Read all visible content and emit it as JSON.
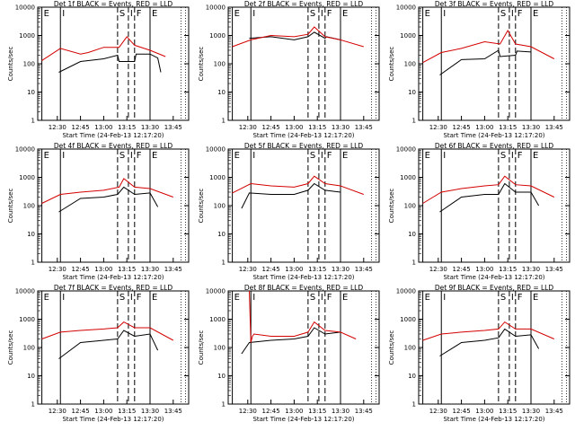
{
  "chart_data": [
    {
      "type": "line",
      "title": "Det 1f BLACK = Events, RED = LLD",
      "xlabel": "Start Time (24-Feb-13 12:17:20)",
      "ylabel": "Counts/sec",
      "x_ticks": [
        "12:30",
        "12:45",
        "13:00",
        "13:15",
        "13:30",
        "13:45"
      ],
      "y_ticks": [
        "1",
        "10",
        "100",
        "1000",
        "10000"
      ],
      "ylim": [
        1,
        10000
      ],
      "log_y": true,
      "markers": [
        {
          "label": "E",
          "time": "12:20",
          "style": "solid"
        },
        {
          "label": "I",
          "time": "12:32",
          "style": "solid"
        },
        {
          "label": "S",
          "time": "13:09",
          "style": "dashed"
        },
        {
          "label": "I",
          "time": "13:16",
          "style": "dashed"
        },
        {
          "label": "F",
          "time": "13:20",
          "style": "dashed"
        },
        {
          "label": "E",
          "time": "13:30",
          "style": "solid"
        }
      ],
      "series": [
        {
          "name": "",
          "color": "#000000",
          "x": [
            "12:31",
            "12:45",
            "13:00",
            "13:09",
            "13:10",
            "13:20",
            "13:21",
            "13:30",
            "13:35",
            "13:37"
          ],
          "y": [
            50,
            120,
            150,
            200,
            120,
            120,
            220,
            220,
            160,
            50
          ]
        },
        {
          "name": "",
          "color": "#d40000",
          "x": [
            "12:20",
            "12:32",
            "12:45",
            "12:50",
            "13:00",
            "13:10",
            "13:15",
            "13:20",
            "13:30",
            "13:40"
          ],
          "y": [
            130,
            350,
            220,
            250,
            380,
            380,
            900,
            450,
            300,
            180
          ]
        }
      ]
    },
    {
      "type": "line",
      "title": "Det 2f BLACK = Events, RED = LLD",
      "xlabel": "Start Time (24-Feb-13 12:17:20)",
      "ylabel": "Counts/sec",
      "x_ticks": [
        "12:30",
        "12:45",
        "13:00",
        "13:15",
        "13:30",
        "13:45"
      ],
      "y_ticks": [
        "1",
        "10",
        "100",
        "1000",
        "10000"
      ],
      "ylim": [
        1,
        10000
      ],
      "log_y": true,
      "markers": [
        {
          "label": "E",
          "time": "12:20",
          "style": "solid"
        },
        {
          "label": "I",
          "time": "12:32",
          "style": "solid"
        },
        {
          "label": "S",
          "time": "13:09",
          "style": "dashed"
        },
        {
          "label": "I",
          "time": "13:16",
          "style": "dashed"
        },
        {
          "label": "F",
          "time": "13:20",
          "style": "dashed"
        },
        {
          "label": "E",
          "time": "13:30",
          "style": "solid"
        }
      ],
      "series": [
        {
          "name": "",
          "color": "#000000",
          "x": [
            "12:31",
            "12:45",
            "13:00",
            "13:09",
            "13:13",
            "13:20",
            "13:21",
            "13:30"
          ],
          "y": [
            800,
            900,
            700,
            900,
            1300,
            800,
            900,
            700
          ]
        },
        {
          "name": "",
          "color": "#d40000",
          "x": [
            "12:20",
            "12:32",
            "12:45",
            "13:00",
            "13:09",
            "13:13",
            "13:20",
            "13:30",
            "13:45"
          ],
          "y": [
            400,
            700,
            1000,
            900,
            1100,
            2000,
            900,
            700,
            400
          ]
        }
      ]
    },
    {
      "type": "line",
      "title": "Det 3f BLACK = Events, RED = LLD",
      "xlabel": "Start Time (24-Feb-13 12:17:20)",
      "ylabel": "Counts/sec",
      "x_ticks": [
        "12:30",
        "12:45",
        "13:00",
        "13:15",
        "13:30",
        "13:45"
      ],
      "y_ticks": [
        "1",
        "10",
        "100",
        "1000",
        "10000"
      ],
      "ylim": [
        1,
        10000
      ],
      "log_y": true,
      "markers": [
        {
          "label": "E",
          "time": "12:20",
          "style": "solid"
        },
        {
          "label": "I",
          "time": "12:32",
          "style": "solid"
        },
        {
          "label": "S",
          "time": "13:09",
          "style": "dashed"
        },
        {
          "label": "I",
          "time": "13:16",
          "style": "dashed"
        },
        {
          "label": "F",
          "time": "13:20",
          "style": "dashed"
        },
        {
          "label": "E",
          "time": "13:30",
          "style": "solid"
        }
      ],
      "series": [
        {
          "name": "",
          "color": "#000000",
          "x": [
            "12:31",
            "12:45",
            "13:00",
            "13:09",
            "13:10",
            "13:20",
            "13:21",
            "13:30"
          ],
          "y": [
            40,
            140,
            150,
            300,
            180,
            200,
            280,
            260
          ]
        },
        {
          "name": "",
          "color": "#d40000",
          "x": [
            "12:20",
            "12:32",
            "12:45",
            "13:00",
            "13:10",
            "13:15",
            "13:20",
            "13:30",
            "13:45"
          ],
          "y": [
            110,
            250,
            350,
            600,
            500,
            1500,
            500,
            400,
            150
          ]
        }
      ]
    },
    {
      "type": "line",
      "title": "Det 4f BLACK = Events, RED = LLD",
      "xlabel": "Start Time (24-Feb-13 12:17:20)",
      "ylabel": "Counts/sec",
      "x_ticks": [
        "12:30",
        "12:45",
        "13:00",
        "13:15",
        "13:30",
        "13:45"
      ],
      "y_ticks": [
        "1",
        "10",
        "100",
        "1000",
        "10000"
      ],
      "ylim": [
        1,
        10000
      ],
      "log_y": true,
      "markers": [
        {
          "label": "E",
          "time": "12:20",
          "style": "solid"
        },
        {
          "label": "I",
          "time": "12:32",
          "style": "solid"
        },
        {
          "label": "S",
          "time": "13:09",
          "style": "dashed"
        },
        {
          "label": "I",
          "time": "13:16",
          "style": "dashed"
        },
        {
          "label": "F",
          "time": "13:20",
          "style": "dashed"
        },
        {
          "label": "E",
          "time": "13:30",
          "style": "solid"
        }
      ],
      "series": [
        {
          "name": "",
          "color": "#000000",
          "x": [
            "12:31",
            "12:45",
            "13:00",
            "13:09",
            "13:13",
            "13:20",
            "13:30",
            "13:35"
          ],
          "y": [
            60,
            180,
            200,
            250,
            450,
            250,
            280,
            90
          ]
        },
        {
          "name": "",
          "color": "#d40000",
          "x": [
            "12:20",
            "12:32",
            "12:45",
            "13:00",
            "13:10",
            "13:13",
            "13:20",
            "13:30",
            "13:45"
          ],
          "y": [
            120,
            250,
            300,
            350,
            450,
            900,
            450,
            400,
            200
          ]
        }
      ]
    },
    {
      "type": "line",
      "title": "Det 5f BLACK = Events, RED = LLD",
      "xlabel": "Start Time (24-Feb-13 12:17:20)",
      "ylabel": "Counts/sec",
      "x_ticks": [
        "12:30",
        "12:45",
        "13:00",
        "13:15",
        "13:30",
        "13:45"
      ],
      "y_ticks": [
        "1",
        "10",
        "100",
        "1000",
        "10000"
      ],
      "ylim": [
        1,
        10000
      ],
      "log_y": true,
      "markers": [
        {
          "label": "E",
          "time": "12:20",
          "style": "solid"
        },
        {
          "label": "I",
          "time": "12:32",
          "style": "solid"
        },
        {
          "label": "S",
          "time": "13:09",
          "style": "dashed"
        },
        {
          "label": "I",
          "time": "13:16",
          "style": "dashed"
        },
        {
          "label": "F",
          "time": "13:20",
          "style": "dashed"
        },
        {
          "label": "E",
          "time": "13:30",
          "style": "solid"
        }
      ],
      "series": [
        {
          "name": "",
          "color": "#000000",
          "x": [
            "12:26",
            "12:31",
            "12:45",
            "13:00",
            "13:09",
            "13:13",
            "13:20",
            "13:30"
          ],
          "y": [
            80,
            280,
            250,
            250,
            350,
            600,
            350,
            300
          ]
        },
        {
          "name": "",
          "color": "#d40000",
          "x": [
            "12:20",
            "12:32",
            "12:45",
            "13:00",
            "13:09",
            "13:13",
            "13:20",
            "13:30",
            "13:45"
          ],
          "y": [
            280,
            600,
            500,
            450,
            600,
            1100,
            600,
            500,
            250
          ]
        }
      ]
    },
    {
      "type": "line",
      "title": "Det 6f BLACK = Events, RED = LLD",
      "xlabel": "Start Time (24-Feb-13 12:17:20)",
      "ylabel": "Counts/sec",
      "x_ticks": [
        "12:30",
        "12:45",
        "13:00",
        "13:15",
        "13:30",
        "13:45"
      ],
      "y_ticks": [
        "1",
        "10",
        "100",
        "1000",
        "10000"
      ],
      "ylim": [
        1,
        10000
      ],
      "log_y": true,
      "markers": [
        {
          "label": "E",
          "time": "12:20",
          "style": "solid"
        },
        {
          "label": "I",
          "time": "12:32",
          "style": "solid"
        },
        {
          "label": "S",
          "time": "13:09",
          "style": "dashed"
        },
        {
          "label": "I",
          "time": "13:16",
          "style": "dashed"
        },
        {
          "label": "F",
          "time": "13:20",
          "style": "dashed"
        },
        {
          "label": "E",
          "time": "13:30",
          "style": "solid"
        }
      ],
      "series": [
        {
          "name": "",
          "color": "#000000",
          "x": [
            "12:31",
            "12:45",
            "13:00",
            "13:09",
            "13:13",
            "13:20",
            "13:30",
            "13:35"
          ],
          "y": [
            60,
            200,
            250,
            250,
            600,
            300,
            300,
            100
          ]
        },
        {
          "name": "",
          "color": "#d40000",
          "x": [
            "12:20",
            "12:32",
            "12:45",
            "13:00",
            "13:09",
            "13:13",
            "13:20",
            "13:30",
            "13:45"
          ],
          "y": [
            120,
            300,
            400,
            500,
            550,
            1100,
            550,
            500,
            200
          ]
        }
      ]
    },
    {
      "type": "line",
      "title": "Det 7f BLACK = Events, RED = LLD",
      "xlabel": "Start Time (24-Feb-13 12:17:20)",
      "ylabel": "Counts/sec",
      "x_ticks": [
        "12:30",
        "12:45",
        "13:00",
        "13:15",
        "13:30",
        "13:45"
      ],
      "y_ticks": [
        "1",
        "10",
        "100",
        "1000",
        "10000"
      ],
      "ylim": [
        1,
        10000
      ],
      "log_y": true,
      "markers": [
        {
          "label": "E",
          "time": "12:20",
          "style": "solid"
        },
        {
          "label": "I",
          "time": "12:32",
          "style": "solid"
        },
        {
          "label": "S",
          "time": "13:09",
          "style": "dashed"
        },
        {
          "label": "I",
          "time": "13:16",
          "style": "dashed"
        },
        {
          "label": "F",
          "time": "13:20",
          "style": "dashed"
        },
        {
          "label": "E",
          "time": "13:30",
          "style": "solid"
        }
      ],
      "series": [
        {
          "name": "",
          "color": "#000000",
          "x": [
            "12:31",
            "12:45",
            "13:00",
            "13:09",
            "13:13",
            "13:20",
            "13:30",
            "13:35"
          ],
          "y": [
            40,
            150,
            180,
            200,
            400,
            250,
            300,
            80
          ]
        },
        {
          "name": "",
          "color": "#d40000",
          "x": [
            "12:20",
            "12:32",
            "12:45",
            "13:00",
            "13:09",
            "13:13",
            "13:20",
            "13:30",
            "13:45"
          ],
          "y": [
            200,
            350,
            400,
            450,
            500,
            800,
            500,
            500,
            180
          ]
        }
      ]
    },
    {
      "type": "line",
      "title": "Det 8f BLACK = Events, RED = LLD",
      "xlabel": "Start Time (24-Feb-13 12:17:20)",
      "ylabel": "Counts/sec",
      "x_ticks": [
        "12:30",
        "12:45",
        "13:00",
        "13:15",
        "13:30",
        "13:45"
      ],
      "y_ticks": [
        "1",
        "10",
        "100",
        "1000",
        "10000"
      ],
      "ylim": [
        1,
        10000
      ],
      "log_y": true,
      "markers": [
        {
          "label": "E",
          "time": "12:20",
          "style": "solid"
        },
        {
          "label": "I",
          "time": "12:32",
          "style": "solid"
        },
        {
          "label": "S",
          "time": "13:09",
          "style": "dashed"
        },
        {
          "label": "I",
          "time": "13:16",
          "style": "dashed"
        },
        {
          "label": "F",
          "time": "13:20",
          "style": "dashed"
        },
        {
          "label": "E",
          "time": "13:30",
          "style": "solid"
        }
      ],
      "series": [
        {
          "name": "",
          "color": "#000000",
          "x": [
            "12:26",
            "12:31",
            "12:45",
            "13:00",
            "13:09",
            "13:13",
            "13:20",
            "13:30"
          ],
          "y": [
            60,
            150,
            180,
            200,
            250,
            500,
            300,
            350
          ]
        },
        {
          "name": "",
          "color": "#d40000",
          "x": [
            "12:31",
            "12:32",
            "12:33",
            "12:34",
            "12:45",
            "13:00",
            "13:09",
            "13:13",
            "13:20",
            "13:30",
            "13:40"
          ],
          "y": [
            10000,
            150,
            250,
            300,
            250,
            250,
            350,
            800,
            400,
            350,
            200
          ]
        }
      ]
    },
    {
      "type": "line",
      "title": "Det 9f BLACK = Events, RED = LLD",
      "xlabel": "Start Time (24-Feb-13 12:17:20)",
      "ylabel": "Counts/sec",
      "x_ticks": [
        "12:30",
        "12:45",
        "13:00",
        "13:15",
        "13:30",
        "13:45"
      ],
      "y_ticks": [
        "1",
        "10",
        "100",
        "1000",
        "10000"
      ],
      "ylim": [
        1,
        10000
      ],
      "log_y": true,
      "markers": [
        {
          "label": "E",
          "time": "12:20",
          "style": "solid"
        },
        {
          "label": "I",
          "time": "12:32",
          "style": "solid"
        },
        {
          "label": "S",
          "time": "13:09",
          "style": "dashed"
        },
        {
          "label": "I",
          "time": "13:16",
          "style": "dashed"
        },
        {
          "label": "F",
          "time": "13:20",
          "style": "dashed"
        },
        {
          "label": "E",
          "time": "13:30",
          "style": "solid"
        }
      ],
      "series": [
        {
          "name": "",
          "color": "#000000",
          "x": [
            "12:31",
            "12:45",
            "13:00",
            "13:09",
            "13:13",
            "13:20",
            "13:30",
            "13:35"
          ],
          "y": [
            50,
            150,
            180,
            220,
            450,
            250,
            280,
            90
          ]
        },
        {
          "name": "",
          "color": "#d40000",
          "x": [
            "12:20",
            "12:32",
            "12:45",
            "13:00",
            "13:09",
            "13:13",
            "13:20",
            "13:30",
            "13:45"
          ],
          "y": [
            180,
            300,
            350,
            400,
            450,
            800,
            450,
            450,
            200
          ]
        }
      ]
    }
  ]
}
